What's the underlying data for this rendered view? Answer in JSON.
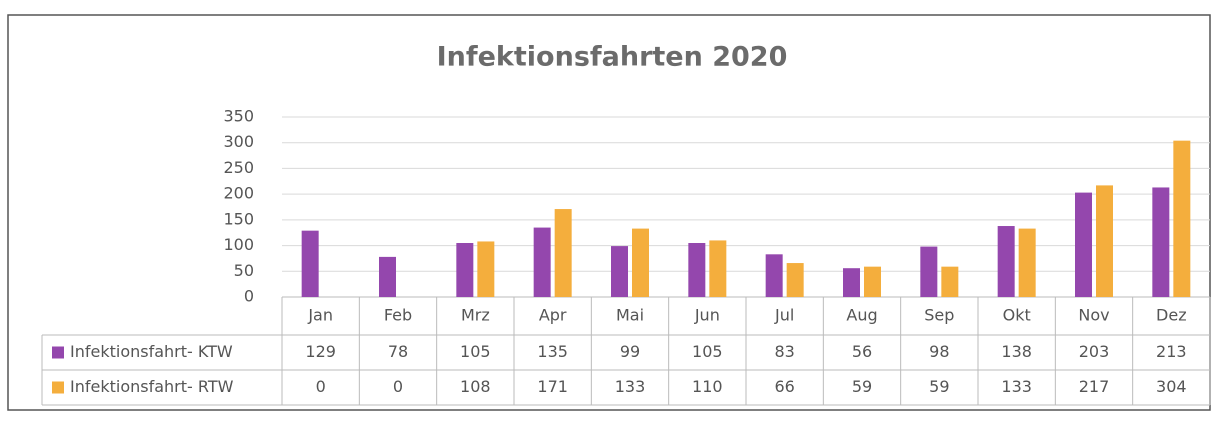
{
  "chart_data": {
    "type": "bar",
    "title": "Infektionsfahrten 2020",
    "categories": [
      "Jan",
      "Feb",
      "Mrz",
      "Apr",
      "Mai",
      "Jun",
      "Jul",
      "Aug",
      "Sep",
      "Okt",
      "Nov",
      "Dez"
    ],
    "series": [
      {
        "name": "Infektionsfahrt- KTW",
        "color": "#9447ad",
        "values": [
          129,
          78,
          105,
          135,
          99,
          105,
          83,
          56,
          98,
          138,
          203,
          213
        ]
      },
      {
        "name": "Infektionsfahrt- RTW",
        "color": "#f4ae3d",
        "values": [
          0,
          0,
          108,
          171,
          133,
          110,
          66,
          59,
          59,
          133,
          217,
          304
        ]
      }
    ],
    "ylim": [
      0,
      350
    ],
    "yticks": [
      0,
      50,
      100,
      150,
      200,
      250,
      300,
      350
    ],
    "grid": true
  }
}
